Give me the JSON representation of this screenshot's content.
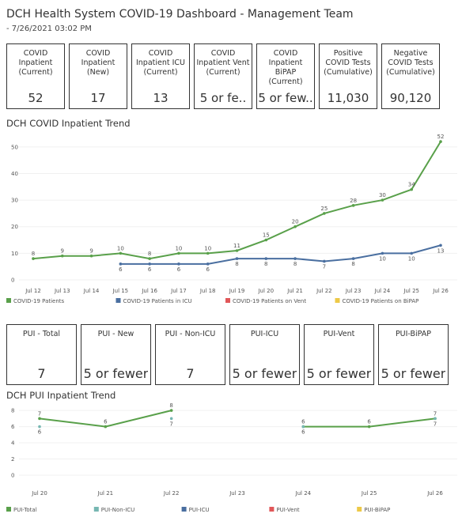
{
  "header": {
    "title": "DCH Health System COVID-19 Dashboard - Management Team",
    "subtitle": "- 7/26/2021 03:02 PM"
  },
  "kpis": [
    {
      "label": "COVID Inpatient (Current)",
      "value": "52"
    },
    {
      "label": "COVID Inpatient (New)",
      "value": "17"
    },
    {
      "label": "COVID Inpatient ICU (Current)",
      "value": "13"
    },
    {
      "label": "COVID Inpatient Vent (Current)",
      "value": "5 or fe.."
    },
    {
      "label": "COVID Inpatient BiPAP (Current)",
      "value": "5 or few.."
    },
    {
      "label": "Positive COVID Tests (Cumulative)",
      "value": "11,030"
    },
    {
      "label": "Negative COVID Tests (Cumulative)",
      "value": "90,120"
    }
  ],
  "pui_kpis": [
    {
      "label": "PUI - Total",
      "value": "7"
    },
    {
      "label": "PUI - New",
      "value": "5 or fewer"
    },
    {
      "label": "PUI - Non-ICU",
      "value": "7"
    },
    {
      "label": "PUI-ICU",
      "value": "5 or fewer"
    },
    {
      "label": "PUI-Vent",
      "value": "5 or fewer"
    },
    {
      "label": "PUI-BiPAP",
      "value": "5 or fewer"
    }
  ],
  "chart_data": [
    {
      "type": "line",
      "title": "DCH COVID Inpatient Trend",
      "categories": [
        "Jul 12",
        "Jul 13",
        "Jul 14",
        "Jul 15",
        "Jul 16",
        "Jul 17",
        "Jul 18",
        "Jul 19",
        "Jul 20",
        "Jul 21",
        "Jul 22",
        "Jul 23",
        "Jul 24",
        "Jul 25",
        "Jul 26"
      ],
      "series": [
        {
          "name": "COVID-19 Patients",
          "color": "#59a04a",
          "values": [
            8,
            9,
            9,
            10,
            8,
            10,
            10,
            11,
            15,
            20,
            25,
            28,
            30,
            34,
            52
          ]
        },
        {
          "name": "COVID-19 Patients in ICU",
          "color": "#4a6fa0",
          "values": [
            null,
            null,
            null,
            6,
            6,
            6,
            6,
            8,
            8,
            8,
            7,
            8,
            10,
            10,
            13
          ]
        },
        {
          "name": "COVID-19 Patients on Vent",
          "color": "#e15759",
          "values": [
            null,
            null,
            null,
            null,
            null,
            null,
            null,
            null,
            null,
            null,
            null,
            null,
            null,
            null,
            null
          ]
        },
        {
          "name": "COVID-19 Patients on BiPAP",
          "color": "#edc948",
          "values": [
            null,
            null,
            null,
            null,
            null,
            null,
            null,
            null,
            null,
            null,
            null,
            null,
            null,
            null,
            null
          ]
        }
      ],
      "ylim": [
        0,
        55
      ],
      "yticks": [
        0,
        10,
        20,
        30,
        40,
        50
      ]
    },
    {
      "type": "line",
      "title": "DCH PUI Inpatient Trend",
      "categories": [
        "Jul 20",
        "Jul 21",
        "Jul 22",
        "Jul 23",
        "Jul 24",
        "Jul 25",
        "Jul 26"
      ],
      "series": [
        {
          "name": "PUI-Total",
          "color": "#59a04a",
          "values": [
            7,
            6,
            8,
            null,
            6,
            6,
            7
          ]
        },
        {
          "name": "PUI-Non-ICU",
          "color": "#76b7b2",
          "values": [
            6,
            null,
            7,
            null,
            6,
            null,
            7
          ]
        },
        {
          "name": "PUI-ICU",
          "color": "#4a6fa0",
          "values": [
            null,
            null,
            null,
            null,
            null,
            null,
            null
          ]
        },
        {
          "name": "PUI-Vent",
          "color": "#e15759",
          "values": [
            null,
            null,
            null,
            null,
            null,
            null,
            null
          ]
        },
        {
          "name": "PUI-BiPAP",
          "color": "#edc948",
          "values": [
            null,
            null,
            null,
            null,
            null,
            null,
            null
          ]
        }
      ],
      "ylim": [
        0,
        8.4
      ],
      "yticks": [
        0,
        2,
        4,
        6,
        8
      ]
    }
  ]
}
